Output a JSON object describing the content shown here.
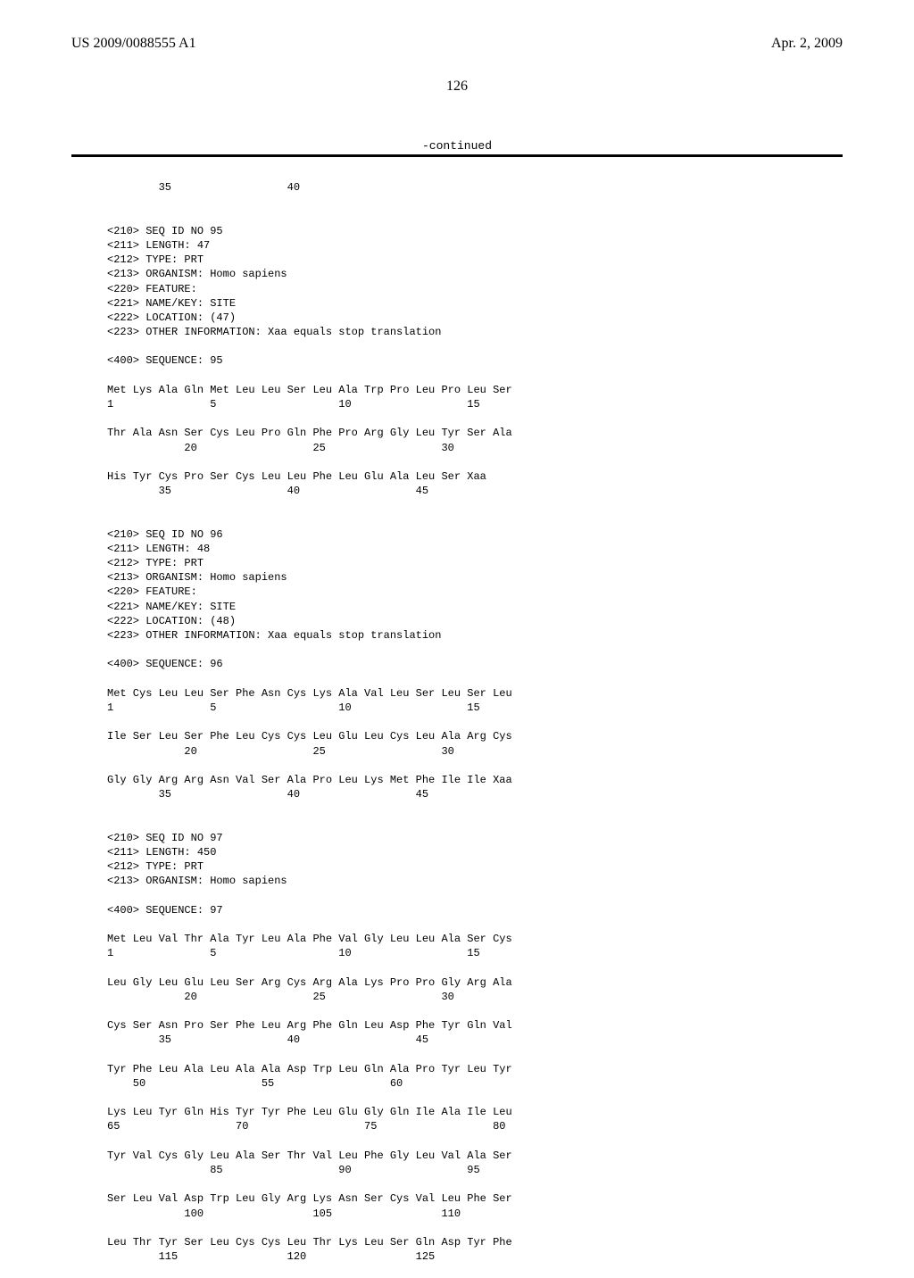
{
  "header": {
    "left": "US 2009/0088555 A1",
    "right": "Apr. 2, 2009"
  },
  "page_number": "126",
  "continued_label": "-continued",
  "seq_top_fragment": "        35                  40",
  "seq95": {
    "meta": [
      "<210> SEQ ID NO 95",
      "<211> LENGTH: 47",
      "<212> TYPE: PRT",
      "<213> ORGANISM: Homo sapiens",
      "<220> FEATURE:",
      "<221> NAME/KEY: SITE",
      "<222> LOCATION: (47)",
      "<223> OTHER INFORMATION: Xaa equals stop translation"
    ],
    "seq_label": "<400> SEQUENCE: 95",
    "lines": [
      "Met Lys Ala Gln Met Leu Leu Ser Leu Ala Trp Pro Leu Pro Leu Ser",
      "1               5                   10                  15",
      "",
      "Thr Ala Asn Ser Cys Leu Pro Gln Phe Pro Arg Gly Leu Tyr Ser Ala",
      "            20                  25                  30",
      "",
      "His Tyr Cys Pro Ser Cys Leu Leu Phe Leu Glu Ala Leu Ser Xaa",
      "        35                  40                  45"
    ]
  },
  "seq96": {
    "meta": [
      "<210> SEQ ID NO 96",
      "<211> LENGTH: 48",
      "<212> TYPE: PRT",
      "<213> ORGANISM: Homo sapiens",
      "<220> FEATURE:",
      "<221> NAME/KEY: SITE",
      "<222> LOCATION: (48)",
      "<223> OTHER INFORMATION: Xaa equals stop translation"
    ],
    "seq_label": "<400> SEQUENCE: 96",
    "lines": [
      "Met Cys Leu Leu Ser Phe Asn Cys Lys Ala Val Leu Ser Leu Ser Leu",
      "1               5                   10                  15",
      "",
      "Ile Ser Leu Ser Phe Leu Cys Cys Leu Glu Leu Cys Leu Ala Arg Cys",
      "            20                  25                  30",
      "",
      "Gly Gly Arg Arg Asn Val Ser Ala Pro Leu Lys Met Phe Ile Ile Xaa",
      "        35                  40                  45"
    ]
  },
  "seq97": {
    "meta": [
      "<210> SEQ ID NO 97",
      "<211> LENGTH: 450",
      "<212> TYPE: PRT",
      "<213> ORGANISM: Homo sapiens"
    ],
    "seq_label": "<400> SEQUENCE: 97",
    "lines": [
      "Met Leu Val Thr Ala Tyr Leu Ala Phe Val Gly Leu Leu Ala Ser Cys",
      "1               5                   10                  15",
      "",
      "Leu Gly Leu Glu Leu Ser Arg Cys Arg Ala Lys Pro Pro Gly Arg Ala",
      "            20                  25                  30",
      "",
      "Cys Ser Asn Pro Ser Phe Leu Arg Phe Gln Leu Asp Phe Tyr Gln Val",
      "        35                  40                  45",
      "",
      "Tyr Phe Leu Ala Leu Ala Ala Asp Trp Leu Gln Ala Pro Tyr Leu Tyr",
      "    50                  55                  60",
      "",
      "Lys Leu Tyr Gln His Tyr Tyr Phe Leu Glu Gly Gln Ile Ala Ile Leu",
      "65                  70                  75                  80",
      "",
      "Tyr Val Cys Gly Leu Ala Ser Thr Val Leu Phe Gly Leu Val Ala Ser",
      "                85                  90                  95",
      "",
      "Ser Leu Val Asp Trp Leu Gly Arg Lys Asn Ser Cys Val Leu Phe Ser",
      "            100                 105                 110",
      "",
      "Leu Thr Tyr Ser Leu Cys Cys Leu Thr Lys Leu Ser Gln Asp Tyr Phe",
      "        115                 120                 125"
    ]
  }
}
